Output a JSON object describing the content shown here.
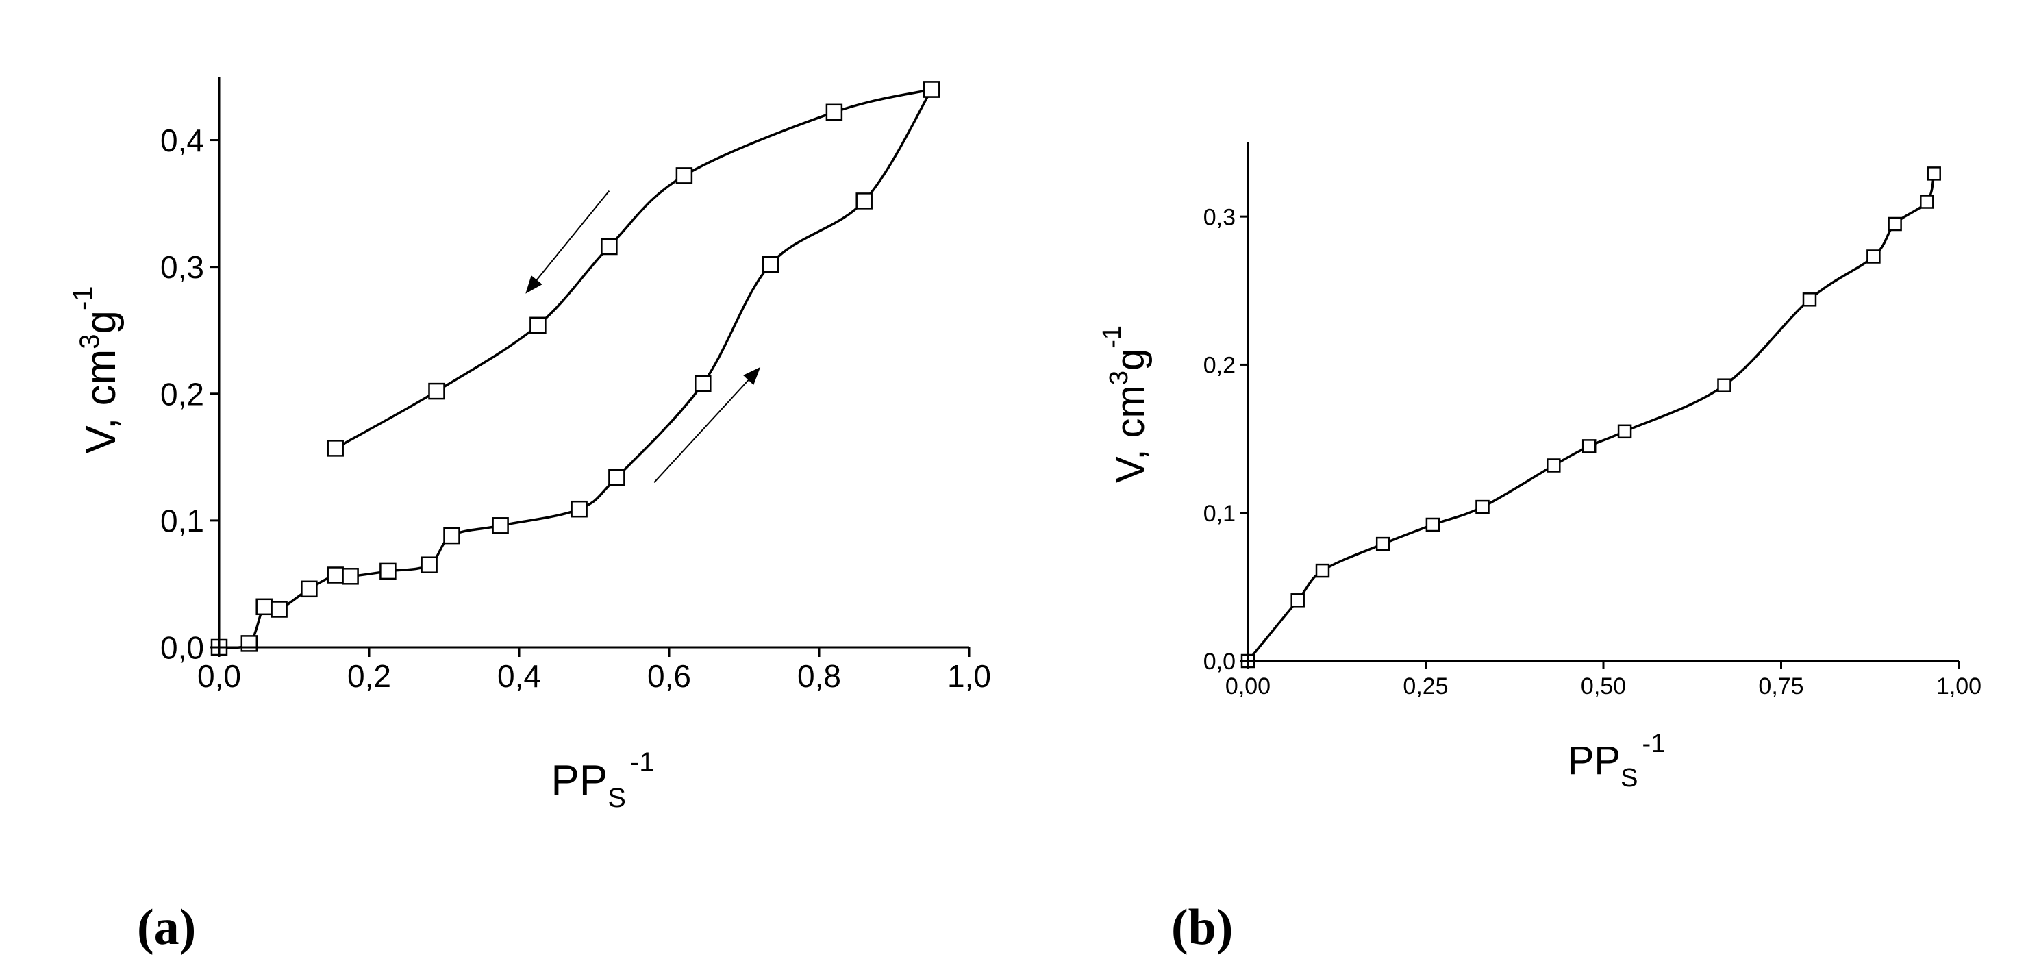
{
  "chart_data": [
    {
      "type": "scatter",
      "panel_label": "(a)",
      "xlabel": {
        "main": "PP",
        "sub": "S",
        "sup": "-1"
      },
      "ylabel": {
        "a": "V, cm",
        "b": "3",
        "c": "g",
        "d": "-1"
      },
      "xlim": [
        0.0,
        1.0
      ],
      "ylim": [
        0.0,
        0.45
      ],
      "x_ticks": [
        0.0,
        0.2,
        0.4,
        0.6,
        0.8,
        1.0
      ],
      "x_tick_labels": [
        "0,0",
        "0,2",
        "0,4",
        "0,6",
        "0,8",
        "1,0"
      ],
      "y_ticks": [
        0.0,
        0.1,
        0.2,
        0.3,
        0.4
      ],
      "y_tick_labels": [
        "0,0",
        "0,1",
        "0,2",
        "0,3",
        "0,4"
      ],
      "grid": false,
      "series": [
        {
          "branch": "adsorption",
          "x": [
            0.0,
            0.04,
            0.06,
            0.08,
            0.12,
            0.155,
            0.175,
            0.225,
            0.28,
            0.31,
            0.375,
            0.48,
            0.53,
            0.645,
            0.735,
            0.86,
            0.95
          ],
          "y": [
            0.0,
            0.003,
            0.032,
            0.03,
            0.046,
            0.057,
            0.056,
            0.06,
            0.065,
            0.088,
            0.096,
            0.109,
            0.134,
            0.208,
            0.302,
            0.352,
            0.44
          ]
        },
        {
          "branch": "desorption",
          "x": [
            0.95,
            0.82,
            0.62,
            0.52,
            0.425,
            0.29,
            0.155
          ],
          "y": [
            0.44,
            0.422,
            0.372,
            0.316,
            0.254,
            0.202,
            0.157
          ]
        }
      ],
      "arrows": [
        {
          "direction": "down-left",
          "from": [
            0.52,
            0.36
          ],
          "to": [
            0.41,
            0.28
          ]
        },
        {
          "direction": "up-right",
          "from": [
            0.58,
            0.13
          ],
          "to": [
            0.72,
            0.22
          ]
        }
      ]
    },
    {
      "type": "scatter",
      "panel_label": "(b)",
      "xlabel": {
        "main": "PP",
        "sub": "S",
        "sup": "-1"
      },
      "ylabel": {
        "a": "V, cm",
        "b": "3",
        "c": "g",
        "d": "-1"
      },
      "xlim": [
        0.0,
        1.0
      ],
      "ylim": [
        0.0,
        0.35
      ],
      "x_ticks": [
        0.0,
        0.25,
        0.5,
        0.75,
        1.0
      ],
      "x_tick_labels": [
        "0,00",
        "0,25",
        "0,50",
        "0,75",
        "1,00"
      ],
      "y_ticks": [
        0.0,
        0.1,
        0.2,
        0.3
      ],
      "y_tick_labels": [
        "0,0",
        "0,1",
        "0,2",
        "0,3"
      ],
      "grid": false,
      "series": [
        {
          "x": [
            0.0,
            0.07,
            0.105,
            0.19,
            0.26,
            0.33,
            0.43,
            0.48,
            0.53,
            0.67,
            0.79,
            0.88,
            0.91,
            0.955,
            0.965
          ],
          "y": [
            0.0,
            0.041,
            0.061,
            0.079,
            0.092,
            0.104,
            0.132,
            0.145,
            0.155,
            0.186,
            0.244,
            0.273,
            0.295,
            0.31,
            0.329
          ]
        }
      ]
    }
  ]
}
